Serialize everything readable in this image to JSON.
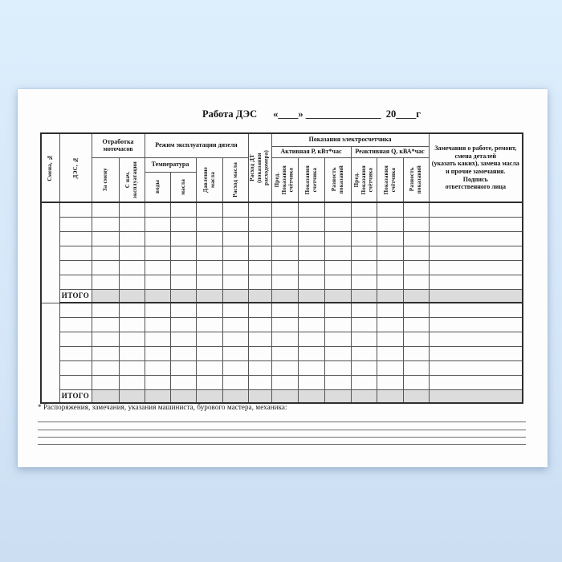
{
  "doc": {
    "title": {
      "form_name": "Работа ДЭС",
      "date_blank": "«____» _______________  20____г"
    },
    "table": {
      "header": {
        "smena": "Смена, №",
        "des": "ДЭС, №",
        "group_motohours": "Отработка\nмоточасов",
        "za_smenu": "За смену",
        "s_nach": "С нач.\nэксплуатации",
        "group_rezhim": "Режим эксплуатации дизеля",
        "group_temp": "Температура",
        "vody": "воды",
        "masla": "масла",
        "davlenie": "Давление\nмасла",
        "rashod_masla": "Расход масла",
        "rashod_dt": "Расход ДТ\n(показания\nрасходомера)",
        "group_meter": "Показания электросчетчика",
        "group_active": "Активная Р, кВт*час",
        "group_reactive": "Реактивная Q, кВА*час",
        "active_prev": "Пред.\nПоказания\nсчётчика",
        "active_cur": "Показания\nсчетчика",
        "active_diff": "Разность\nпоказаний",
        "reactive_prev": "Пред.\nПоказания\nсчётчика",
        "reactive_cur": "Показания\nсчётчика",
        "reactive_diff": "Разность\nпоказаний",
        "remarks": "Замечания о работе, ремонт,\nсмена деталей\n(указать каких), замена масла\nи прочие замечания.\nПодпись\nответственного лица"
      },
      "body": {
        "blocks": 2,
        "data_rows_per_block": 6,
        "columns": 16,
        "total_label": "ИТОГО",
        "row_values": []
      },
      "colors": {
        "grid_line": "#555555",
        "heavy_line": "#2e2e2e",
        "total_row_fill": "#dcdcdc"
      }
    },
    "footnote": "* Распоряжения, замечания, указания машиниста, бурового мастера, механика:",
    "ruled_lines_count": 4,
    "colors": {
      "background": "#d8eafa",
      "paper": "#fdfdfe"
    }
  }
}
